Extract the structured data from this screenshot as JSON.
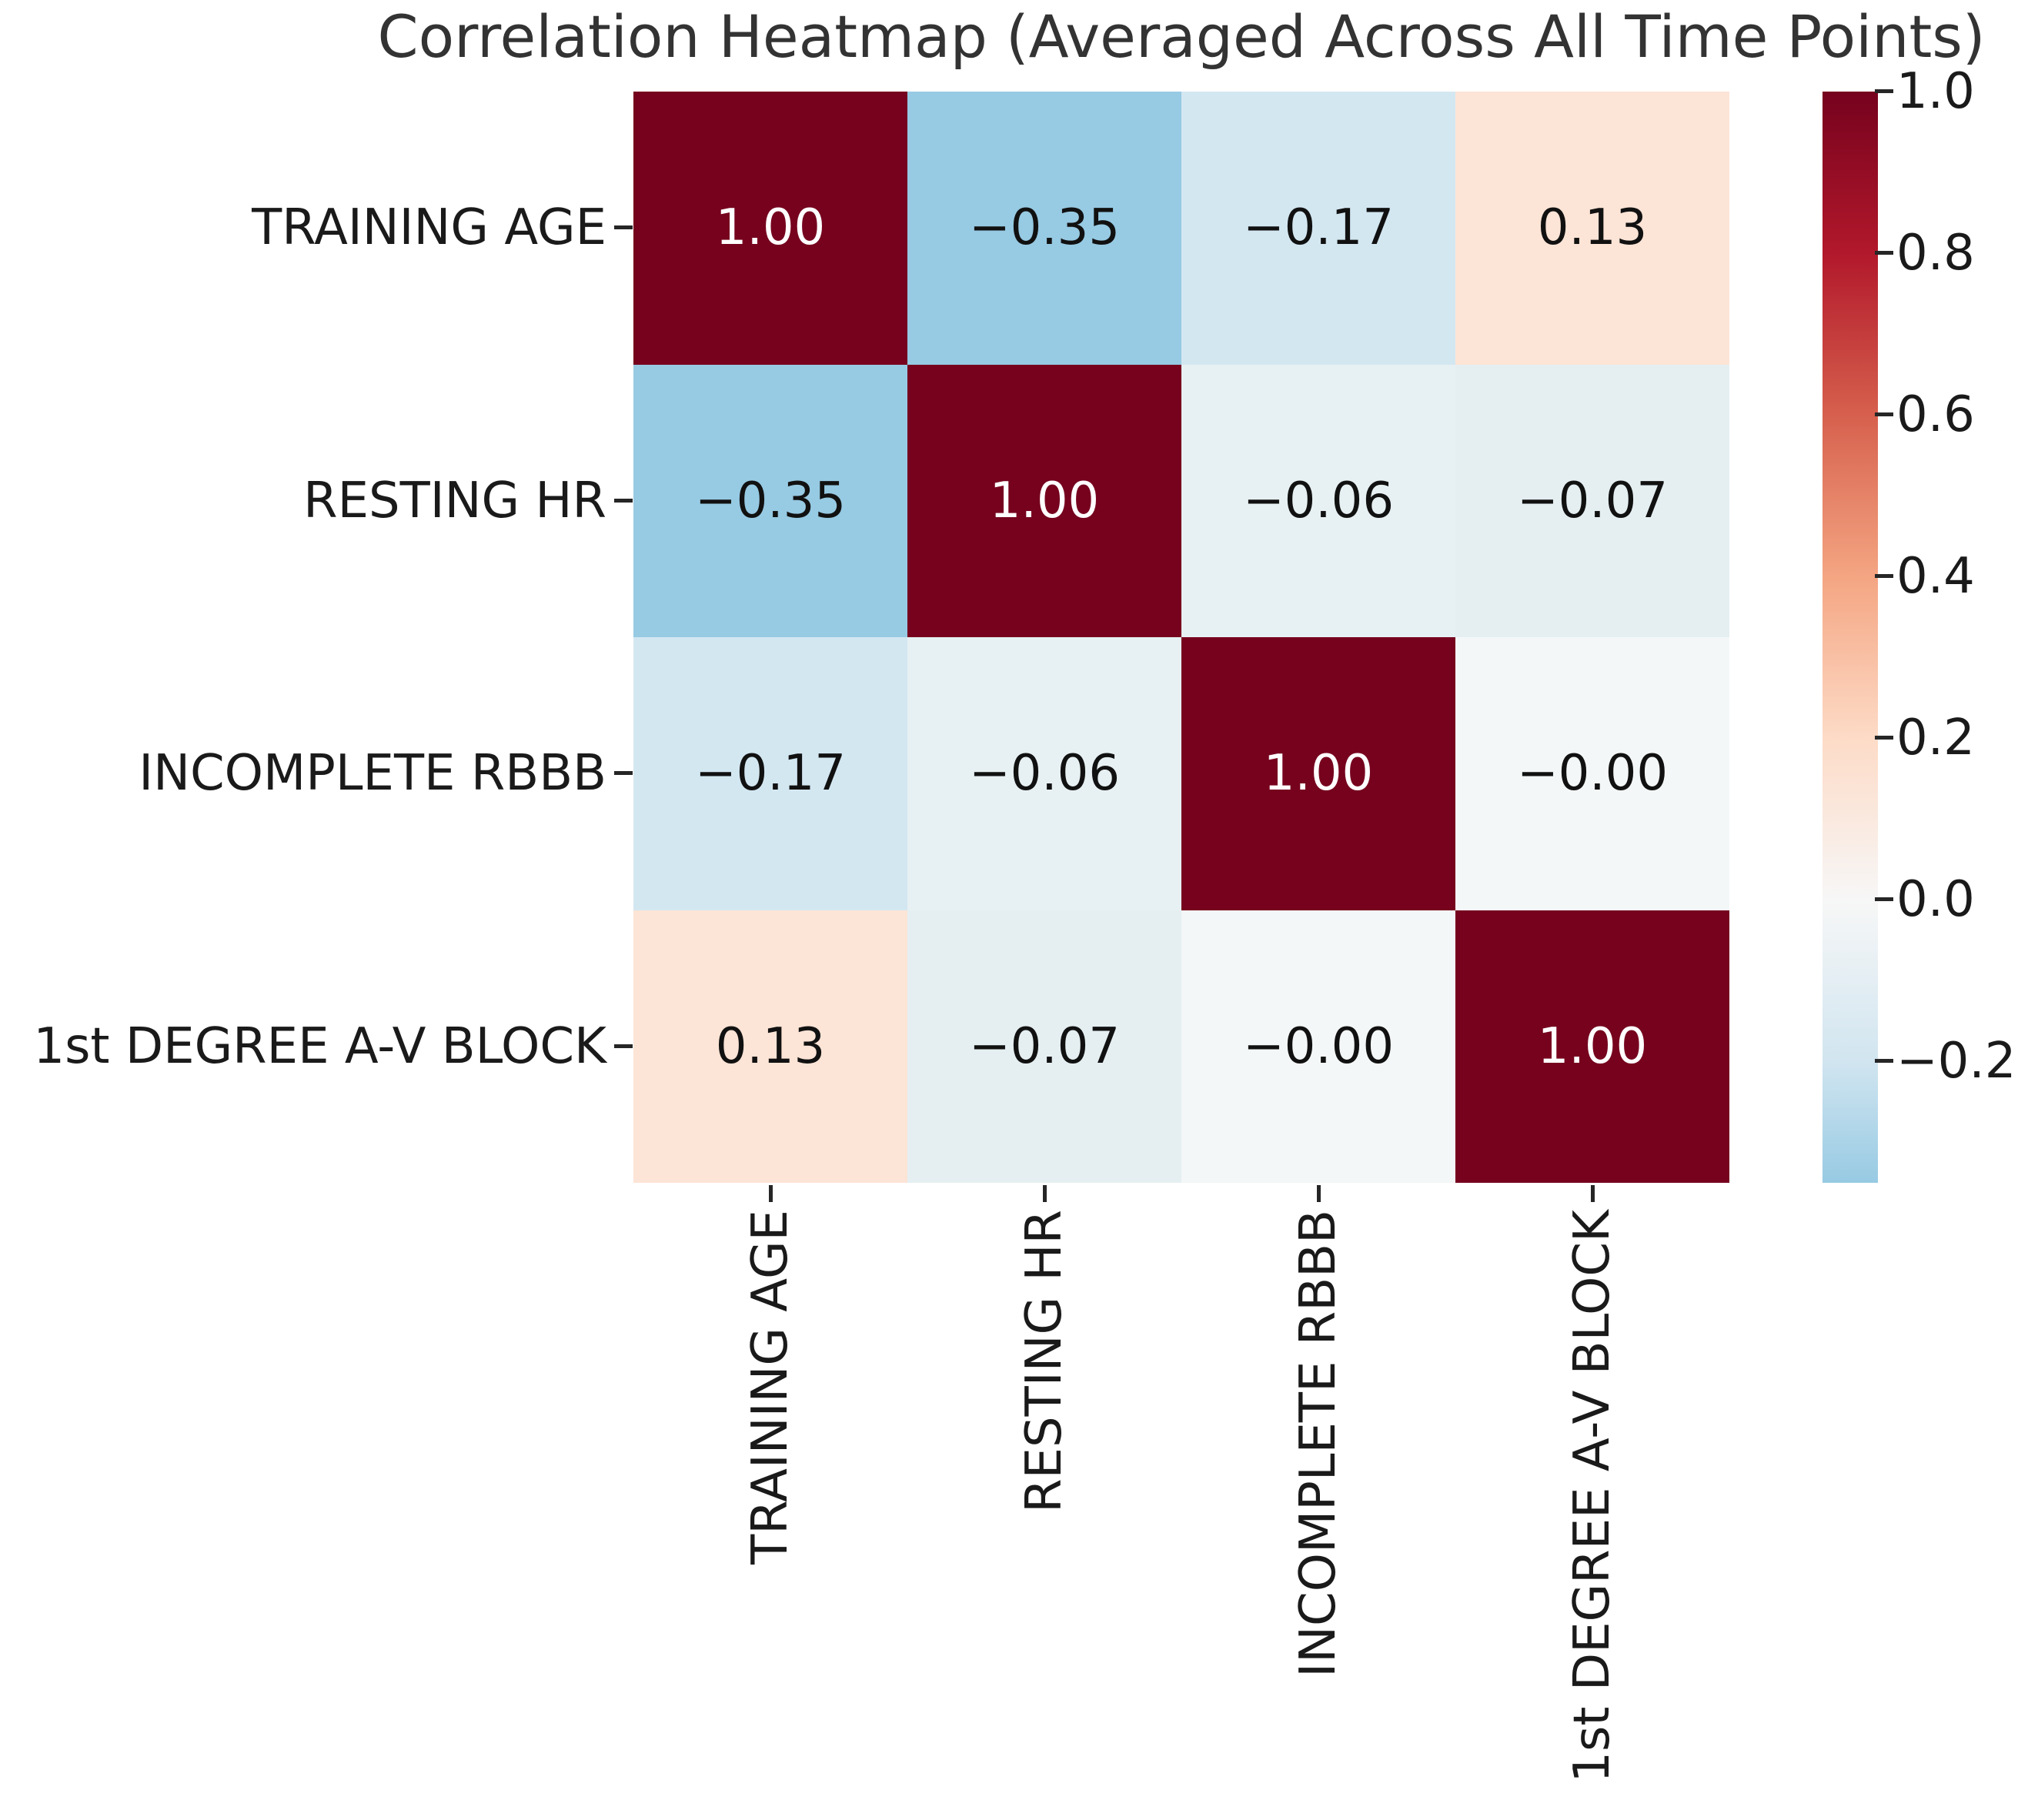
{
  "title": "Correlation Heatmap (Averaged Across All Time Points)",
  "chart_data": {
    "type": "heatmap",
    "title": "Correlation Heatmap (Averaged Across All Time Points)",
    "categories": [
      "TRAINING AGE",
      "RESTING HR",
      "INCOMPLETE RBBB",
      "1st DEGREE A-V BLOCK"
    ],
    "matrix": [
      [
        1.0,
        -0.35,
        -0.17,
        0.13
      ],
      [
        -0.35,
        1.0,
        -0.06,
        -0.07
      ],
      [
        -0.17,
        -0.06,
        1.0,
        -0.0
      ],
      [
        0.13,
        -0.07,
        -0.0,
        1.0
      ]
    ],
    "cells": [
      [
        {
          "label": "1.00",
          "bg": "#76021e",
          "fg": "#ffffff"
        },
        {
          "label": "−0.35",
          "bg": "#97cae3",
          "fg": "#111111"
        },
        {
          "label": "−0.17",
          "bg": "#d3e7f1",
          "fg": "#111111"
        },
        {
          "label": "0.13",
          "bg": "#fce4d6",
          "fg": "#111111"
        }
      ],
      [
        {
          "label": "−0.35",
          "bg": "#97cae3",
          "fg": "#111111"
        },
        {
          "label": "1.00",
          "bg": "#76021e",
          "fg": "#ffffff"
        },
        {
          "label": "−0.06",
          "bg": "#e7f0f2",
          "fg": "#111111"
        },
        {
          "label": "−0.07",
          "bg": "#e5eff2",
          "fg": "#111111"
        }
      ],
      [
        {
          "label": "−0.17",
          "bg": "#d3e7f1",
          "fg": "#111111"
        },
        {
          "label": "−0.06",
          "bg": "#e7f0f2",
          "fg": "#111111"
        },
        {
          "label": "1.00",
          "bg": "#76021e",
          "fg": "#ffffff"
        },
        {
          "label": "−0.00",
          "bg": "#f4f7f7",
          "fg": "#111111"
        }
      ],
      [
        {
          "label": "0.13",
          "bg": "#fce4d6",
          "fg": "#111111"
        },
        {
          "label": "−0.07",
          "bg": "#e5eff2",
          "fg": "#111111"
        },
        {
          "label": "−0.00",
          "bg": "#f4f7f7",
          "fg": "#111111"
        },
        {
          "label": "1.00",
          "bg": "#76021e",
          "fg": "#ffffff"
        }
      ]
    ],
    "colormap": "RdBu_r",
    "colorbar": {
      "position": "right",
      "vmin": -0.35,
      "vmax": 1.0,
      "ticks": [
        {
          "value": 1.0,
          "label": "1.0"
        },
        {
          "value": 0.8,
          "label": "0.8"
        },
        {
          "value": 0.6,
          "label": "0.6"
        },
        {
          "value": 0.4,
          "label": "0.4"
        },
        {
          "value": 0.2,
          "label": "0.2"
        },
        {
          "value": 0.0,
          "label": "0.0"
        },
        {
          "value": -0.2,
          "label": "−0.2"
        }
      ],
      "gradient": [
        {
          "pos": 0.0,
          "color": "#76021e"
        },
        {
          "pos": 0.148,
          "color": "#b2182b"
        },
        {
          "pos": 0.296,
          "color": "#d6604d"
        },
        {
          "pos": 0.444,
          "color": "#f4a582"
        },
        {
          "pos": 0.593,
          "color": "#fddbc7"
        },
        {
          "pos": 0.741,
          "color": "#f7f7f7"
        },
        {
          "pos": 0.889,
          "color": "#d1e5f0"
        },
        {
          "pos": 1.0,
          "color": "#97cae3"
        }
      ]
    },
    "grid": false
  },
  "colors": {
    "background": "#ffffff",
    "title_text": "#333333",
    "tick_text": "#1a1a1a",
    "tick_mark": "#262626"
  }
}
